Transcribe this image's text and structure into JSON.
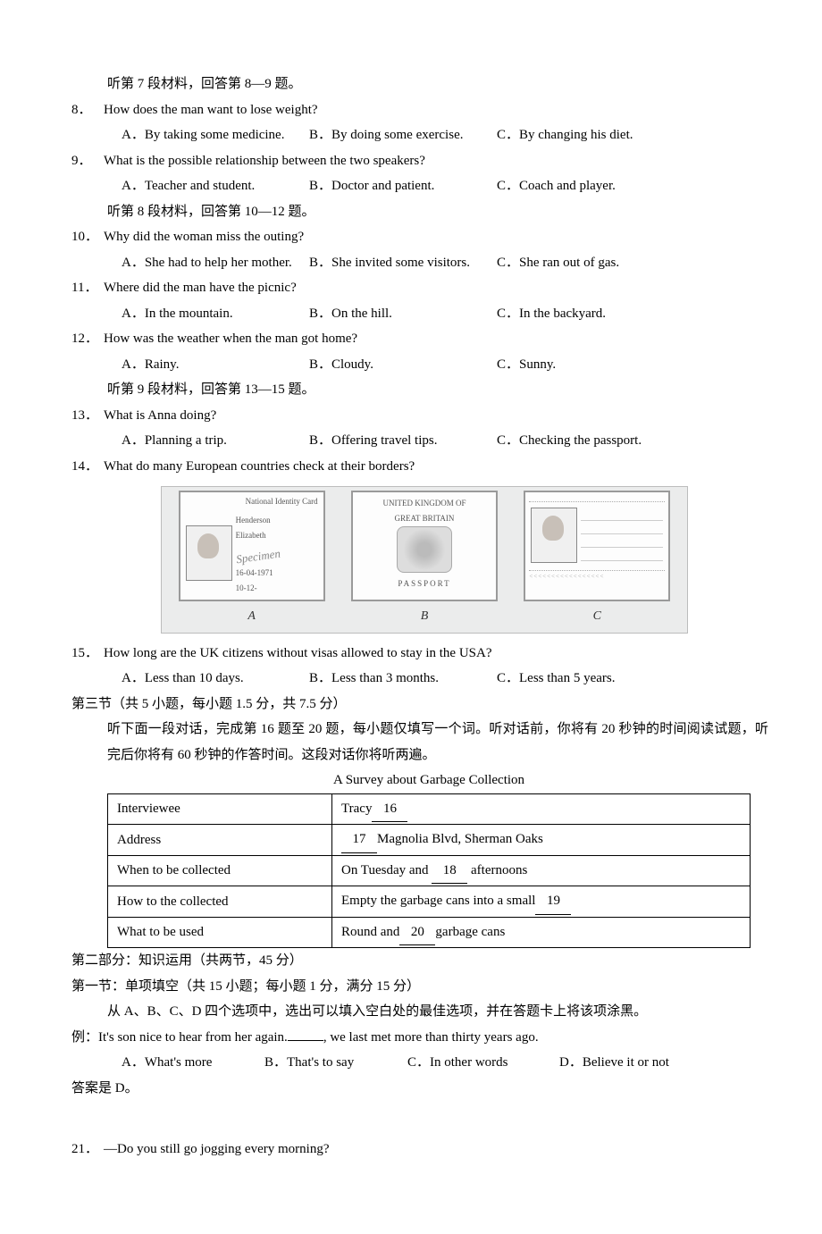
{
  "listening": {
    "seg7_intro": "听第 7 段材料，回答第 8—9 题。",
    "q8": {
      "num": "8．",
      "text": "How does the man want to lose weight?",
      "a": "A．By taking some medicine.",
      "b": "B．By doing some exercise.",
      "c": "C．By changing his diet."
    },
    "q9": {
      "num": "9．",
      "text": "What is the possible relationship between the two speakers?",
      "a": "A．Teacher and student.",
      "b": "B．Doctor and patient.",
      "c": "C．Coach and player."
    },
    "seg8_intro": "听第 8 段材料，回答第 10—12 题。",
    "q10": {
      "num": "10．",
      "text": "Why did the woman miss the outing?",
      "a": "A．She had to help her mother.",
      "b": "B．She invited some visitors.",
      "c": "C．She ran out of gas."
    },
    "q11": {
      "num": "11．",
      "text": "Where did the man have the picnic?",
      "a": "A．In the mountain.",
      "b": "B．On the hill.",
      "c": "C．In the backyard."
    },
    "q12": {
      "num": "12．",
      "text": "How was the weather when the man got home?",
      "a": "A．Rainy.",
      "b": "B．Cloudy.",
      "c": "C．Sunny."
    },
    "seg9_intro": "听第 9 段材料，回答第 13—15 题。",
    "q13": {
      "num": "13．",
      "text": "What is Anna doing?",
      "a": "A．Planning a trip.",
      "b": "B．Offering travel tips.",
      "c": "C．Checking the passport."
    },
    "q14": {
      "num": "14．",
      "text": "What do many European countries check at their borders?"
    },
    "q15": {
      "num": "15．",
      "text": "How long are the UK citizens without visas allowed to stay in the USA?",
      "a": "A．Less than 10 days.",
      "b": "B．Less than 3 months.",
      "c": "C．Less than 5 years."
    }
  },
  "figure": {
    "card_a": {
      "title": "National Identity Card",
      "name": "Henderson",
      "firstname": "Elizabeth",
      "stamp": "Specimen",
      "dob": "16-04-1971",
      "exp": "10-12-",
      "photo_alt": "female portrait photo",
      "label": "A"
    },
    "card_b": {
      "header1": "UNITED KINGDOM OF",
      "header2": "GREAT BRITAIN",
      "footer": "PASSPORT",
      "crest_alt": "royal crest",
      "label": "B"
    },
    "card_c": {
      "photo_alt": "male portrait photo",
      "label": "C"
    }
  },
  "section3": {
    "header": "第三节（共 5 小题，每小题 1.5 分，共 7.5 分）",
    "instr": "听下面一段对话，完成第 16 题至 20 题，每小题仅填写一个词。听对话前，你将有 20 秒钟的时间阅读试题，听完后你将有 60 秒钟的作答时间。这段对话你将听两遍。",
    "table": {
      "title": "A Survey about Garbage Collection",
      "rows": [
        {
          "left": "Interviewee",
          "right_pre": "Tracy",
          "blank": "16",
          "right_post": ""
        },
        {
          "left": "Address",
          "right_pre": "",
          "blank": "17",
          "right_post": "Magnolia Blvd, Sherman Oaks"
        },
        {
          "left": "When to be collected",
          "right_pre": "On Tuesday and ",
          "blank": "18",
          "right_post": " afternoons"
        },
        {
          "left": "How to the collected",
          "right_pre": "Empty the garbage cans into a small",
          "blank": "19",
          "right_post": ""
        },
        {
          "left": "What to be used",
          "right_pre": "Round and",
          "blank": "20",
          "right_post": "garbage cans"
        }
      ]
    }
  },
  "part2": {
    "header": "第二部分：知识运用（共两节，45 分）",
    "sec1_header": "第一节：单项填空（共 15 小题；每小题 1 分，满分 15 分）",
    "instr": "从 A、B、C、D 四个选项中，选出可以填入空白处的最佳选项，并在答题卡上将该项涂黑。",
    "example": {
      "prefix": "例：",
      "text_pre": "It's son nice to hear from her again.",
      "text_post": ", we last met more than thirty years ago.",
      "a": "A．What's more",
      "b": "B．That's to say",
      "c": "C．In other words",
      "d": "D．Believe it or not",
      "answer": "答案是 D。"
    },
    "q21": {
      "num": "21．",
      "text": "—Do you still go jogging every morning?"
    }
  }
}
